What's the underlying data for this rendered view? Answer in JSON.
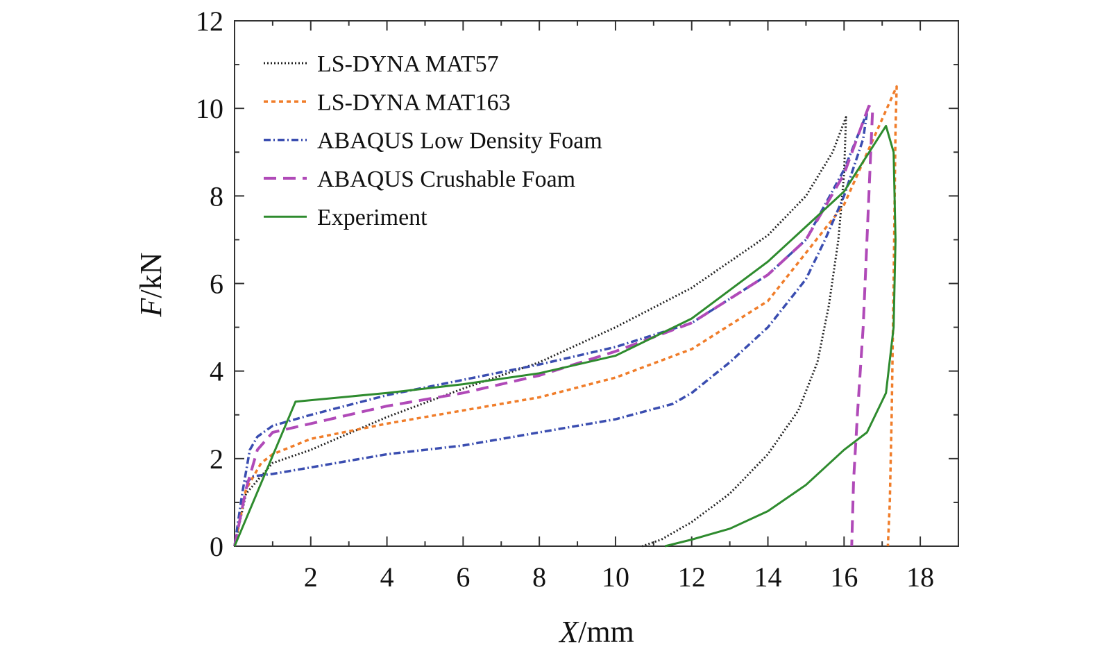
{
  "chart_data": {
    "type": "line",
    "title": "",
    "xlabel_var": "X",
    "xlabel_unit": "/mm",
    "ylabel_var": "F",
    "ylabel_unit": "/kN",
    "xlim": [
      0,
      19
    ],
    "ylim": [
      0,
      12
    ],
    "xticks": [
      2,
      4,
      6,
      8,
      10,
      12,
      14,
      16,
      18
    ],
    "yticks": [
      0,
      2,
      4,
      6,
      8,
      10,
      12
    ],
    "grid": false,
    "legend_position": "top-left",
    "series": [
      {
        "name": "LS-DYNA MAT57",
        "color": "#222222",
        "dash": "dotted",
        "points": [
          [
            0,
            0
          ],
          [
            0.3,
            1.2
          ],
          [
            1,
            1.9
          ],
          [
            2,
            2.2
          ],
          [
            4,
            2.95
          ],
          [
            6,
            3.6
          ],
          [
            8,
            4.2
          ],
          [
            10,
            5.0
          ],
          [
            12,
            5.9
          ],
          [
            14,
            7.1
          ],
          [
            15,
            8.0
          ],
          [
            15.7,
            9.0
          ],
          [
            16.05,
            9.8
          ],
          [
            16.0,
            8.5
          ],
          [
            15.85,
            7.0
          ],
          [
            15.6,
            5.5
          ],
          [
            15.3,
            4.2
          ],
          [
            14.8,
            3.1
          ],
          [
            14,
            2.1
          ],
          [
            13,
            1.2
          ],
          [
            12,
            0.55
          ],
          [
            11.2,
            0.15
          ],
          [
            10.7,
            0
          ]
        ]
      },
      {
        "name": "LS-DYNA MAT163",
        "color": "#f07d2a",
        "dash": "short-dash",
        "points": [
          [
            0,
            0
          ],
          [
            0.3,
            1.3
          ],
          [
            0.7,
            1.9
          ],
          [
            1,
            2.1
          ],
          [
            2,
            2.45
          ],
          [
            4,
            2.8
          ],
          [
            6,
            3.1
          ],
          [
            8,
            3.4
          ],
          [
            10,
            3.85
          ],
          [
            12,
            4.5
          ],
          [
            14,
            5.6
          ],
          [
            16,
            7.8
          ],
          [
            17.38,
            10.5
          ],
          [
            17.35,
            9.5
          ],
          [
            17.3,
            6.0
          ],
          [
            17.25,
            3.0
          ],
          [
            17.2,
            1.0
          ],
          [
            17.15,
            0
          ]
        ]
      },
      {
        "name": "ABAQUS Low Density Foam",
        "color": "#3a4db0",
        "dash": "dash-dot",
        "points": [
          [
            0,
            0
          ],
          [
            0.2,
            1.2
          ],
          [
            0.4,
            2.2
          ],
          [
            0.6,
            2.5
          ],
          [
            1,
            2.75
          ],
          [
            2,
            3.0
          ],
          [
            4,
            3.45
          ],
          [
            6,
            3.8
          ],
          [
            8,
            4.15
          ],
          [
            10,
            4.55
          ],
          [
            12,
            5.1
          ],
          [
            14,
            6.2
          ],
          [
            15,
            7.0
          ],
          [
            16,
            8.6
          ],
          [
            16.6,
            9.9
          ],
          [
            16.5,
            9.3
          ],
          [
            16,
            8.0
          ],
          [
            15.5,
            7.0
          ],
          [
            15,
            6.1
          ],
          [
            14,
            5.0
          ],
          [
            13,
            4.2
          ],
          [
            12,
            3.5
          ],
          [
            11.5,
            3.25
          ],
          [
            10,
            2.9
          ],
          [
            8,
            2.6
          ],
          [
            6,
            2.3
          ],
          [
            4,
            2.1
          ],
          [
            2,
            1.8
          ],
          [
            1,
            1.65
          ],
          [
            0.5,
            1.6
          ],
          [
            0.3,
            1.45
          ]
        ]
      },
      {
        "name": "ABAQUS Crushable Foam",
        "color": "#b04ab8",
        "dash": "long-dash",
        "points": [
          [
            0,
            0
          ],
          [
            0.3,
            1.3
          ],
          [
            0.6,
            2.2
          ],
          [
            1,
            2.6
          ],
          [
            2,
            2.8
          ],
          [
            4,
            3.2
          ],
          [
            6,
            3.5
          ],
          [
            8,
            3.9
          ],
          [
            10,
            4.45
          ],
          [
            12,
            5.1
          ],
          [
            14,
            6.2
          ],
          [
            15,
            7.0
          ],
          [
            16,
            8.5
          ],
          [
            16.5,
            9.7
          ],
          [
            16.65,
            10.05
          ],
          [
            16.75,
            10.0
          ],
          [
            16.7,
            9.0
          ],
          [
            16.6,
            7.0
          ],
          [
            16.5,
            5.0
          ],
          [
            16.35,
            3.0
          ],
          [
            16.25,
            1.5
          ],
          [
            16.2,
            0
          ]
        ]
      },
      {
        "name": "Experiment",
        "color": "#2e8b2e",
        "dash": "solid",
        "points": [
          [
            0,
            0
          ],
          [
            1.6,
            3.3
          ],
          [
            4,
            3.5
          ],
          [
            6,
            3.7
          ],
          [
            8,
            3.95
          ],
          [
            10,
            4.35
          ],
          [
            12,
            5.2
          ],
          [
            14,
            6.5
          ],
          [
            16,
            8.1
          ],
          [
            17.1,
            9.6
          ],
          [
            17.3,
            9.0
          ],
          [
            17.35,
            7.0
          ],
          [
            17.3,
            5.0
          ],
          [
            17.1,
            3.5
          ],
          [
            16.6,
            2.6
          ],
          [
            16,
            2.2
          ],
          [
            15,
            1.4
          ],
          [
            14,
            0.8
          ],
          [
            13,
            0.4
          ],
          [
            12,
            0.15
          ],
          [
            11.3,
            0
          ]
        ]
      }
    ]
  }
}
